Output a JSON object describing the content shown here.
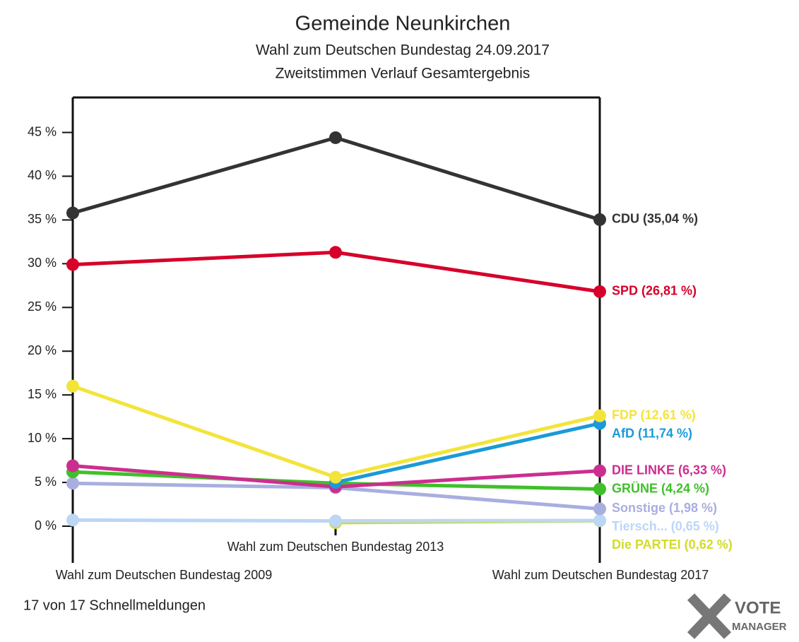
{
  "chart_data": {
    "type": "line",
    "title": "Gemeinde Neunkirchen",
    "subtitle": [
      "Wahl zum Deutschen Bundestag 24.09.2017",
      "Zweitstimmen Verlauf Gesamtergebnis"
    ],
    "categories": [
      "Wahl zum Deutschen Bundestag 2009",
      "Wahl zum Deutschen Bundestag 2013",
      "Wahl zum Deutschen Bundestag 2017"
    ],
    "ylim": [
      0,
      49
    ],
    "yticks": [
      {
        "value": 0,
        "label": "0 %"
      },
      {
        "value": 5,
        "label": "5 %"
      },
      {
        "value": 10,
        "label": "10 %"
      },
      {
        "value": 15,
        "label": "15 %"
      },
      {
        "value": 20,
        "label": "20 %"
      },
      {
        "value": 25,
        "label": "25 %"
      },
      {
        "value": 30,
        "label": "30 %"
      },
      {
        "value": 35,
        "label": "35 %"
      },
      {
        "value": 40,
        "label": "40 %"
      },
      {
        "value": 45,
        "label": "45 %"
      }
    ],
    "grid": false,
    "series": [
      {
        "color": "#d2dc2a",
        "values": [
          null,
          0.4,
          0.62
        ],
        "value_labels": [
          null,
          null,
          "Die PARTEI (0,62 %)"
        ]
      },
      {
        "color": "#bcd6f6",
        "values": [
          0.7,
          0.6,
          0.65
        ],
        "value_labels": [
          null,
          null,
          "Tiersch... (0,65 %)"
        ]
      },
      {
        "color": "#a9aee0",
        "values": [
          4.9,
          4.4,
          1.98
        ],
        "value_labels": [
          null,
          null,
          "Sonstige (1,98 %)"
        ]
      },
      {
        "color": "#3fc02a",
        "values": [
          6.2,
          4.9,
          4.24
        ],
        "value_labels": [
          null,
          null,
          "GRÜNE (4,24 %)"
        ]
      },
      {
        "color": "#cc2e8f",
        "values": [
          6.9,
          4.5,
          6.33
        ],
        "value_labels": [
          null,
          null,
          "DIE LINKE (6,33 %)"
        ]
      },
      {
        "color": "#1a9ad8",
        "values": [
          null,
          5.0,
          11.74
        ],
        "value_labels": [
          null,
          null,
          "AfD (11,74 %)"
        ]
      },
      {
        "color": "#f3e43a",
        "values": [
          16.0,
          5.6,
          12.61
        ],
        "value_labels": [
          null,
          null,
          "FDP (12,61 %)"
        ]
      },
      {
        "color": "#d6002a",
        "values": [
          29.9,
          31.3,
          26.81
        ],
        "value_labels": [
          null,
          null,
          "SPD (26,81 %)"
        ]
      },
      {
        "color": "#333333",
        "values": [
          35.8,
          44.4,
          35.04
        ],
        "value_labels": [
          null,
          null,
          "CDU (35,04 %)"
        ]
      }
    ],
    "footer": "17 von 17 Schnellmeldungen",
    "logo": [
      "VOTE",
      "MANAGER"
    ]
  }
}
